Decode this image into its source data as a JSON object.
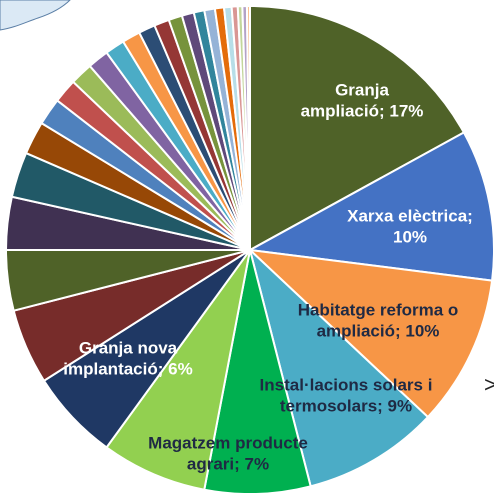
{
  "chart_data": {
    "type": "pie",
    "values": [
      17,
      10,
      10,
      9,
      7,
      7,
      6,
      5,
      4,
      3.5,
      3,
      2.2,
      1.8,
      1.6,
      1.5,
      1.4,
      1.3,
      1.2,
      1.1,
      1,
      0.9,
      0.8,
      0.7,
      0.7,
      0.6,
      0.5,
      0.4,
      0.3,
      0.3,
      0.2
    ],
    "value_labels": [
      "Granja\nampliació; 17%",
      "Xarxa elèctrica;\n10%",
      "Habitatge reforma o\nampliació; 10%",
      "Instal·lacions solars i\ntermosolars; 9%",
      null,
      "Magatzem producte\nagrari; 7%",
      "Granja nova\nimplantació; 6%",
      null,
      null,
      null,
      null,
      null,
      null,
      null,
      null,
      null,
      null,
      null,
      null,
      null,
      null,
      null,
      null,
      null,
      null,
      null,
      null,
      null,
      null,
      null
    ],
    "value_label_colors": [
      "#ffffff",
      "#ffffff",
      "#1f2a44",
      "#1f2a44",
      null,
      "#1f2a44",
      "#ffffff",
      null,
      null,
      null,
      null,
      null,
      null,
      null,
      null,
      null,
      null,
      null,
      null,
      null,
      null,
      null,
      null,
      null,
      null,
      null,
      null,
      null,
      null,
      null
    ],
    "colors": [
      "#4f6228",
      "#4472c4",
      "#f79646",
      "#4bacc6",
      "#00b050",
      "#92d050",
      "#1f3864",
      "#772c2a",
      "#4f6228",
      "#403152",
      "#215967",
      "#974806",
      "#4f81bd",
      "#c0504d",
      "#9bbb59",
      "#8064a2",
      "#4bacc6",
      "#f79646",
      "#2c4d75",
      "#953735",
      "#77933c",
      "#5f497a",
      "#31859c",
      "#95b3d7",
      "#e46c0a",
      "#b7dee8",
      "#d99694",
      "#c3d69b",
      "#b3a2c7",
      "#fac090"
    ],
    "annotations": [
      ">"
    ]
  }
}
